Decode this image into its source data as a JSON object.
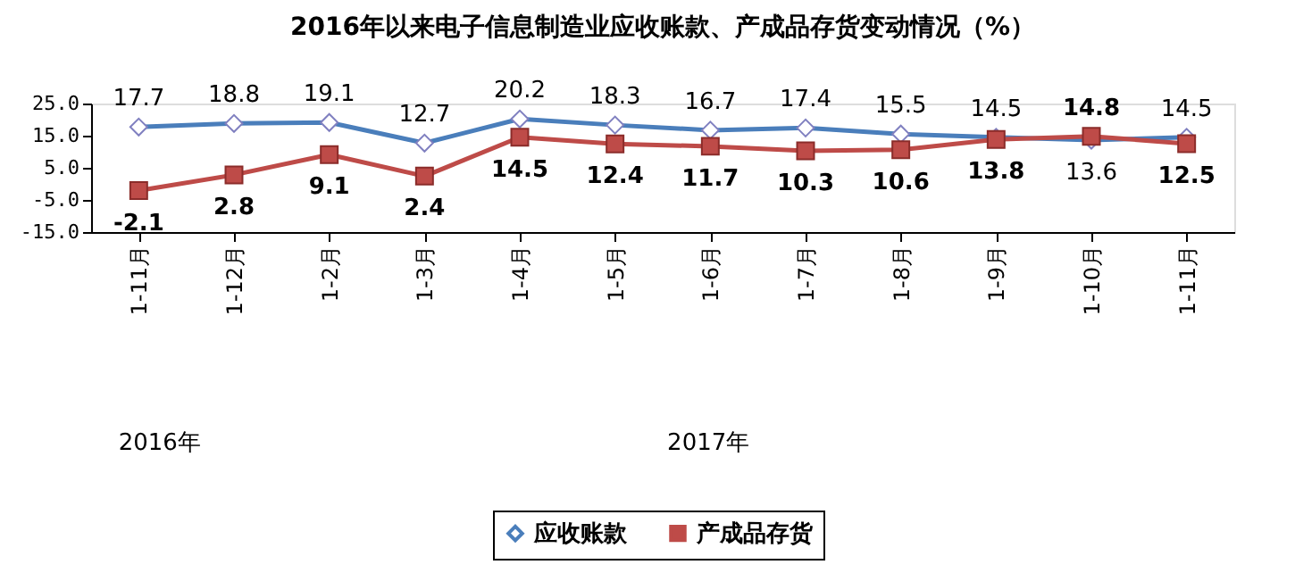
{
  "chart_data": {
    "type": "line",
    "title": "2016年以来电子信息制造业应收账款、产成品存货变动情况（%）",
    "categories": [
      "1-11月",
      "1-12月",
      "1-2月",
      "1-3月",
      "1-4月",
      "1-5月",
      "1-6月",
      "1-7月",
      "1-8月",
      "1-9月",
      "1-10月",
      "1-11月"
    ],
    "series": [
      {
        "name": "应收账款",
        "color": "#4a7ebb",
        "marker": "diamond",
        "values": [
          17.7,
          18.8,
          19.1,
          12.7,
          20.2,
          18.3,
          16.7,
          17.4,
          15.5,
          14.5,
          13.6,
          14.5
        ]
      },
      {
        "name": "产成品存货",
        "color": "#be4b48",
        "marker": "square",
        "values": [
          -2.1,
          2.8,
          9.1,
          2.4,
          14.5,
          12.4,
          11.7,
          10.3,
          10.6,
          13.8,
          14.8,
          12.5
        ]
      }
    ],
    "ylim": [
      -15,
      25
    ],
    "yticks": [
      {
        "value": -15,
        "label": "-15.0"
      },
      {
        "value": -5,
        "label": "-5.0"
      },
      {
        "value": 5,
        "label": "5.0"
      },
      {
        "value": 15,
        "label": "15.0"
      },
      {
        "value": 25,
        "label": "25.0"
      }
    ],
    "annotations": [
      "2016年",
      "2017年"
    ],
    "data_labels": true,
    "legend": "bottom",
    "grid": false
  }
}
